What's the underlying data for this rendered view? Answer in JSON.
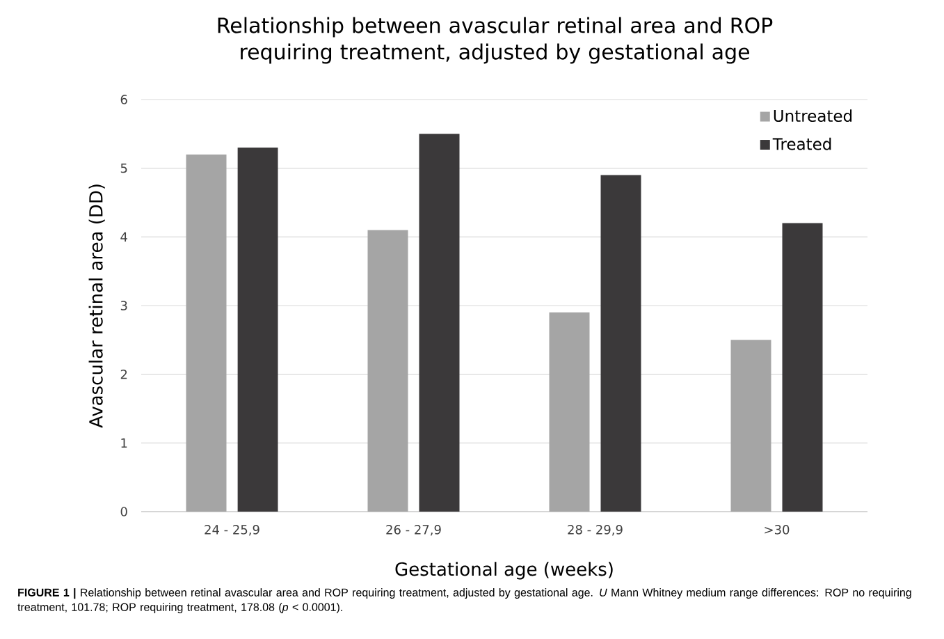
{
  "chart_data": {
    "type": "bar",
    "title": "Relationship between avascular retinal area and ROP requiring treatment, adjusted by gestational age",
    "xlabel": "Gestational age (weeks)",
    "ylabel": "Avascular retinal area (DD)",
    "categories": [
      "24 - 25,9",
      "26 - 27,9",
      "28 - 29,9",
      ">30"
    ],
    "series": [
      {
        "name": "Untreated",
        "color": "#a5a5a5",
        "values": [
          5.2,
          4.1,
          2.9,
          2.5
        ]
      },
      {
        "name": "Treated",
        "color": "#3b393a",
        "values": [
          5.3,
          5.5,
          4.9,
          4.2
        ]
      }
    ],
    "ylim": [
      0,
      6
    ],
    "yticks": [
      0,
      1,
      2,
      3,
      4,
      5,
      6
    ],
    "grid": "y",
    "legend": "top right",
    "annotations": [
      "**FIGURE 1 |** Relationship between retinal avascular area and ROP requiring treatment, adjusted by gestational age. *U* Mann Whitney medium range differences: ROP no requiring treatment, 101.78; ROP requiring treatment, 178.08 (*p* < 0.0001)."
    ]
  }
}
